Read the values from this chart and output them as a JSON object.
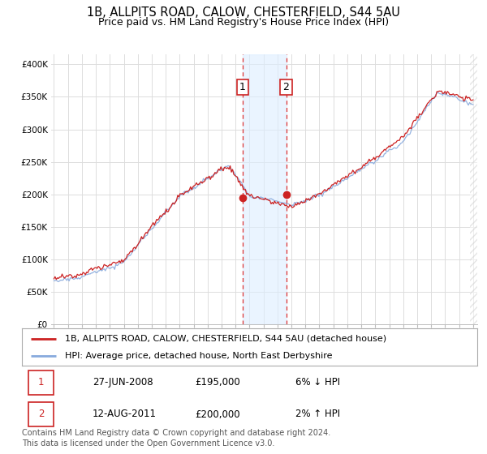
{
  "title": "1B, ALLPITS ROAD, CALOW, CHESTERFIELD, S44 5AU",
  "subtitle": "Price paid vs. HM Land Registry's House Price Index (HPI)",
  "ylabel_ticks": [
    "£0",
    "£50K",
    "£100K",
    "£150K",
    "£200K",
    "£250K",
    "£300K",
    "£350K",
    "£400K"
  ],
  "ytick_values": [
    0,
    50000,
    100000,
    150000,
    200000,
    250000,
    300000,
    350000,
    400000
  ],
  "ylim": [
    0,
    415000
  ],
  "xlim_start": 1994.8,
  "xlim_end": 2025.3,
  "background_color": "#ffffff",
  "plot_bg_color": "#ffffff",
  "grid_color": "#dddddd",
  "hpi_color": "#88aadd",
  "price_color": "#cc2222",
  "transaction1_x": 2008.49,
  "transaction1_y": 195000,
  "transaction2_x": 2011.62,
  "transaction2_y": 200000,
  "shade_color": "#ddeeff",
  "shade_alpha": 0.6,
  "marker_label1": "1",
  "marker_label2": "2",
  "legend_line1": "1B, ALLPITS ROAD, CALOW, CHESTERFIELD, S44 5AU (detached house)",
  "legend_line2": "HPI: Average price, detached house, North East Derbyshire",
  "table_row1": [
    "1",
    "27-JUN-2008",
    "£195,000",
    "6% ↓ HPI"
  ],
  "table_row2": [
    "2",
    "12-AUG-2011",
    "£200,000",
    "2% ↑ HPI"
  ],
  "footer": "Contains HM Land Registry data © Crown copyright and database right 2024.\nThis data is licensed under the Open Government Licence v3.0.",
  "title_fontsize": 10.5,
  "subtitle_fontsize": 9,
  "tick_fontsize": 7.5,
  "legend_fontsize": 8,
  "table_fontsize": 8.5,
  "footer_fontsize": 7
}
